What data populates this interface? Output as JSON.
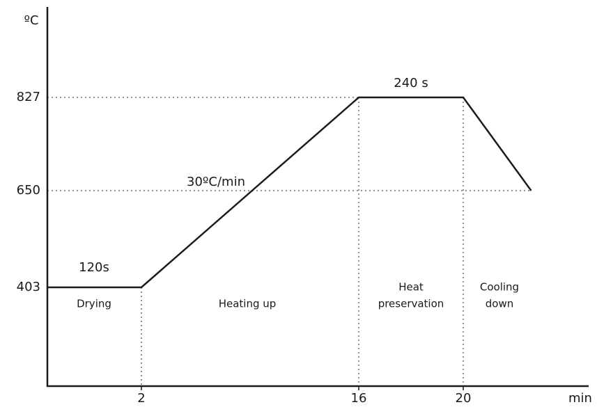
{
  "chart_data": {
    "type": "line",
    "ylabel": "ºC",
    "xlabel": "min",
    "x": [
      0,
      2,
      16,
      20,
      22.6
    ],
    "series": [
      {
        "color": "#1a1a1a",
        "values": [
          403,
          403,
          827,
          827,
          650
        ]
      }
    ],
    "xlim": [
      0,
      24.8
    ],
    "ylim": [
      151,
      999
    ],
    "xticks": [
      2,
      16,
      20
    ],
    "yticks": [
      403,
      650,
      827
    ],
    "annotations": [
      "120s",
      "30ºC/min",
      "240 s"
    ],
    "phases": [
      [
        "Drying"
      ],
      [
        "Heating up"
      ],
      [
        "Heat",
        "preservation"
      ],
      [
        "Cooling",
        "down"
      ]
    ]
  }
}
